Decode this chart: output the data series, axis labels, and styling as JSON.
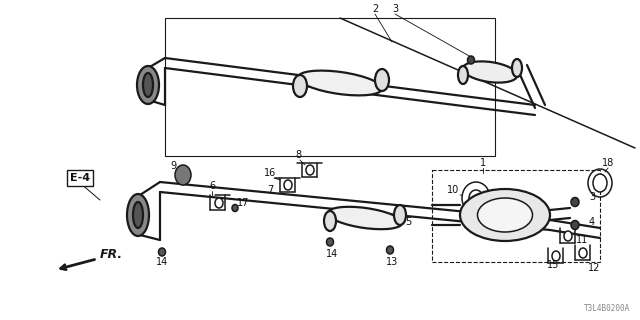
{
  "bg_color": "#ffffff",
  "line_color": "#1a1a1a",
  "watermark": "T3L4B0200A",
  "figsize": [
    6.4,
    3.2
  ],
  "dpi": 100
}
